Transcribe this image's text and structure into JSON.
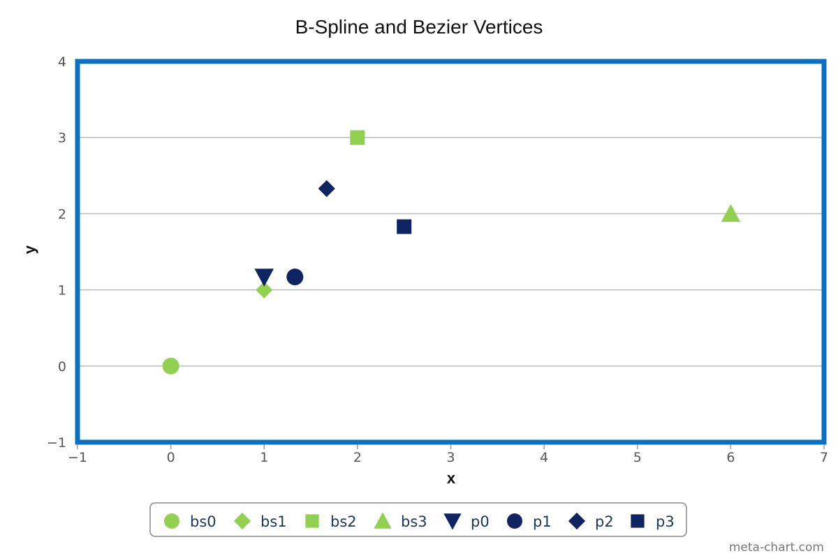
{
  "chart_data": {
    "type": "scatter",
    "title": "B-Spline and Bezier Vertices",
    "xlabel": "x",
    "ylabel": "y",
    "xlim": [
      -1,
      7
    ],
    "ylim": [
      -1,
      4
    ],
    "xticks": [
      -1,
      0,
      1,
      2,
      3,
      4,
      5,
      6,
      7
    ],
    "yticks": [
      -1,
      0,
      1,
      2,
      3,
      4
    ],
    "xtick_labels": [
      "−1",
      "0",
      "1",
      "2",
      "3",
      "4",
      "5",
      "6",
      "7"
    ],
    "ytick_labels": [
      "−1",
      "0",
      "1",
      "2",
      "3",
      "4"
    ],
    "grid": "horizontal",
    "legend_position": "bottom",
    "series": [
      {
        "name": "bs0",
        "marker": "circle",
        "color": "#92d050",
        "x": [
          0
        ],
        "y": [
          0
        ]
      },
      {
        "name": "bs1",
        "marker": "diamond",
        "color": "#92d050",
        "x": [
          1
        ],
        "y": [
          1
        ]
      },
      {
        "name": "bs2",
        "marker": "square",
        "color": "#92d050",
        "x": [
          2
        ],
        "y": [
          3
        ]
      },
      {
        "name": "bs3",
        "marker": "triangle-up",
        "color": "#92d050",
        "x": [
          6
        ],
        "y": [
          2
        ]
      },
      {
        "name": "p0",
        "marker": "triangle-down",
        "color": "#0e2463",
        "x": [
          1
        ],
        "y": [
          1.17
        ]
      },
      {
        "name": "p1",
        "marker": "circle",
        "color": "#0e2463",
        "x": [
          1.33
        ],
        "y": [
          1.17
        ]
      },
      {
        "name": "p2",
        "marker": "diamond",
        "color": "#0e2463",
        "x": [
          1.67
        ],
        "y": [
          2.33
        ]
      },
      {
        "name": "p3",
        "marker": "square",
        "color": "#0e2463",
        "x": [
          2.5
        ],
        "y": [
          1.83
        ]
      }
    ]
  },
  "credit": "meta-chart.com",
  "colors": {
    "plot_border": "#0a70c0",
    "grid": "#bbbbbb",
    "legend_border": "#888888"
  }
}
